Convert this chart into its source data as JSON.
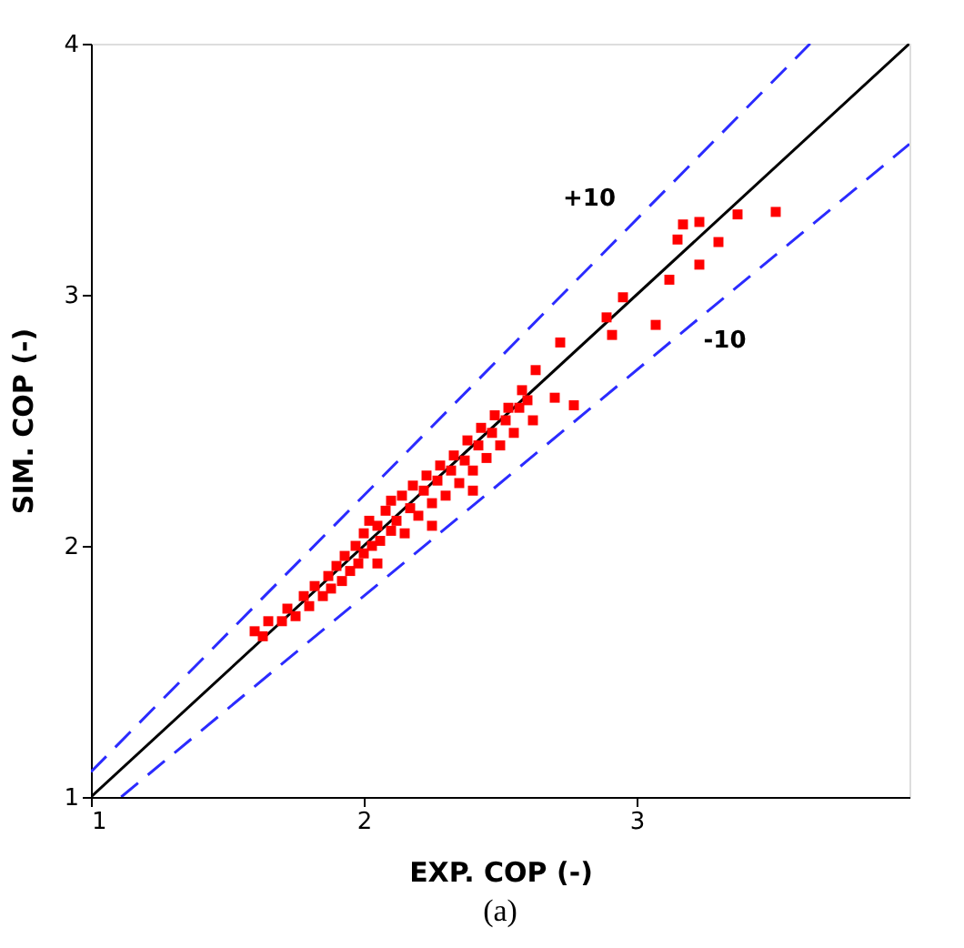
{
  "chart_data": {
    "type": "scatter",
    "xlabel": "EXP. COP (-)",
    "ylabel": "SIM. COP (-)",
    "xlim": [
      1,
      4
    ],
    "ylim": [
      1,
      4
    ],
    "xticks": [
      1,
      2,
      3
    ],
    "yticks": [
      1,
      2,
      3,
      4
    ],
    "marker": "square",
    "annotations": [
      {
        "text": "+10",
        "x": 2.92,
        "y": 3.21
      },
      {
        "text": "-10",
        "x": 3.39,
        "y": 3.05
      },
      "(a)"
    ],
    "series": [
      {
        "type": "line",
        "color": "#000000",
        "line_style": "solid",
        "marker": "none",
        "x": [
          1,
          4
        ],
        "values": [
          1,
          4
        ]
      },
      {
        "type": "line",
        "color": "#2b2bff",
        "line_style": "dashed",
        "marker": "none",
        "x": [
          1,
          3.636
        ],
        "values": [
          1.1,
          4
        ]
      },
      {
        "type": "line",
        "color": "#2b2bff",
        "line_style": "dashed",
        "marker": "none",
        "x": [
          1.111,
          4
        ],
        "values": [
          1,
          3.6
        ]
      },
      {
        "color": "#ff0000",
        "x": [
          1.6,
          1.63,
          1.65,
          1.7,
          1.72,
          1.75,
          1.78,
          1.8,
          1.82,
          1.85,
          1.87,
          1.88,
          1.9,
          1.92,
          1.93,
          1.95,
          1.97,
          1.98,
          2.0,
          2.0,
          2.02,
          2.03,
          2.05,
          2.06,
          2.08,
          2.1,
          2.1,
          2.12,
          2.14,
          2.15,
          2.17,
          2.18,
          2.2,
          2.22,
          2.23,
          2.25,
          2.27,
          2.28,
          2.3,
          2.32,
          2.33,
          2.35,
          2.37,
          2.38,
          2.4,
          2.42,
          2.43,
          2.45,
          2.47,
          2.48,
          2.5,
          2.52,
          2.53,
          2.55,
          2.57,
          2.6,
          2.58,
          2.62,
          2.05,
          2.25,
          2.4,
          2.63,
          2.7,
          2.77,
          2.72,
          2.89,
          2.95,
          2.91,
          3.07,
          3.12,
          3.23,
          3.3,
          3.15,
          3.17,
          3.23,
          3.37,
          3.51
        ],
        "values": [
          1.66,
          1.64,
          1.7,
          1.7,
          1.75,
          1.72,
          1.8,
          1.76,
          1.84,
          1.8,
          1.88,
          1.83,
          1.92,
          1.86,
          1.96,
          1.9,
          2.0,
          1.93,
          2.05,
          1.97,
          2.1,
          2.0,
          2.08,
          2.02,
          2.14,
          2.06,
          2.18,
          2.1,
          2.2,
          2.05,
          2.15,
          2.24,
          2.12,
          2.22,
          2.28,
          2.17,
          2.26,
          2.32,
          2.2,
          2.3,
          2.36,
          2.25,
          2.34,
          2.42,
          2.3,
          2.4,
          2.47,
          2.35,
          2.45,
          2.52,
          2.4,
          2.5,
          2.55,
          2.45,
          2.55,
          2.58,
          2.62,
          2.5,
          1.93,
          2.08,
          2.22,
          2.7,
          2.59,
          2.56,
          2.81,
          2.91,
          2.99,
          2.84,
          2.88,
          3.06,
          3.12,
          3.21,
          3.22,
          3.28,
          3.29,
          3.32,
          3.33
        ]
      }
    ]
  }
}
